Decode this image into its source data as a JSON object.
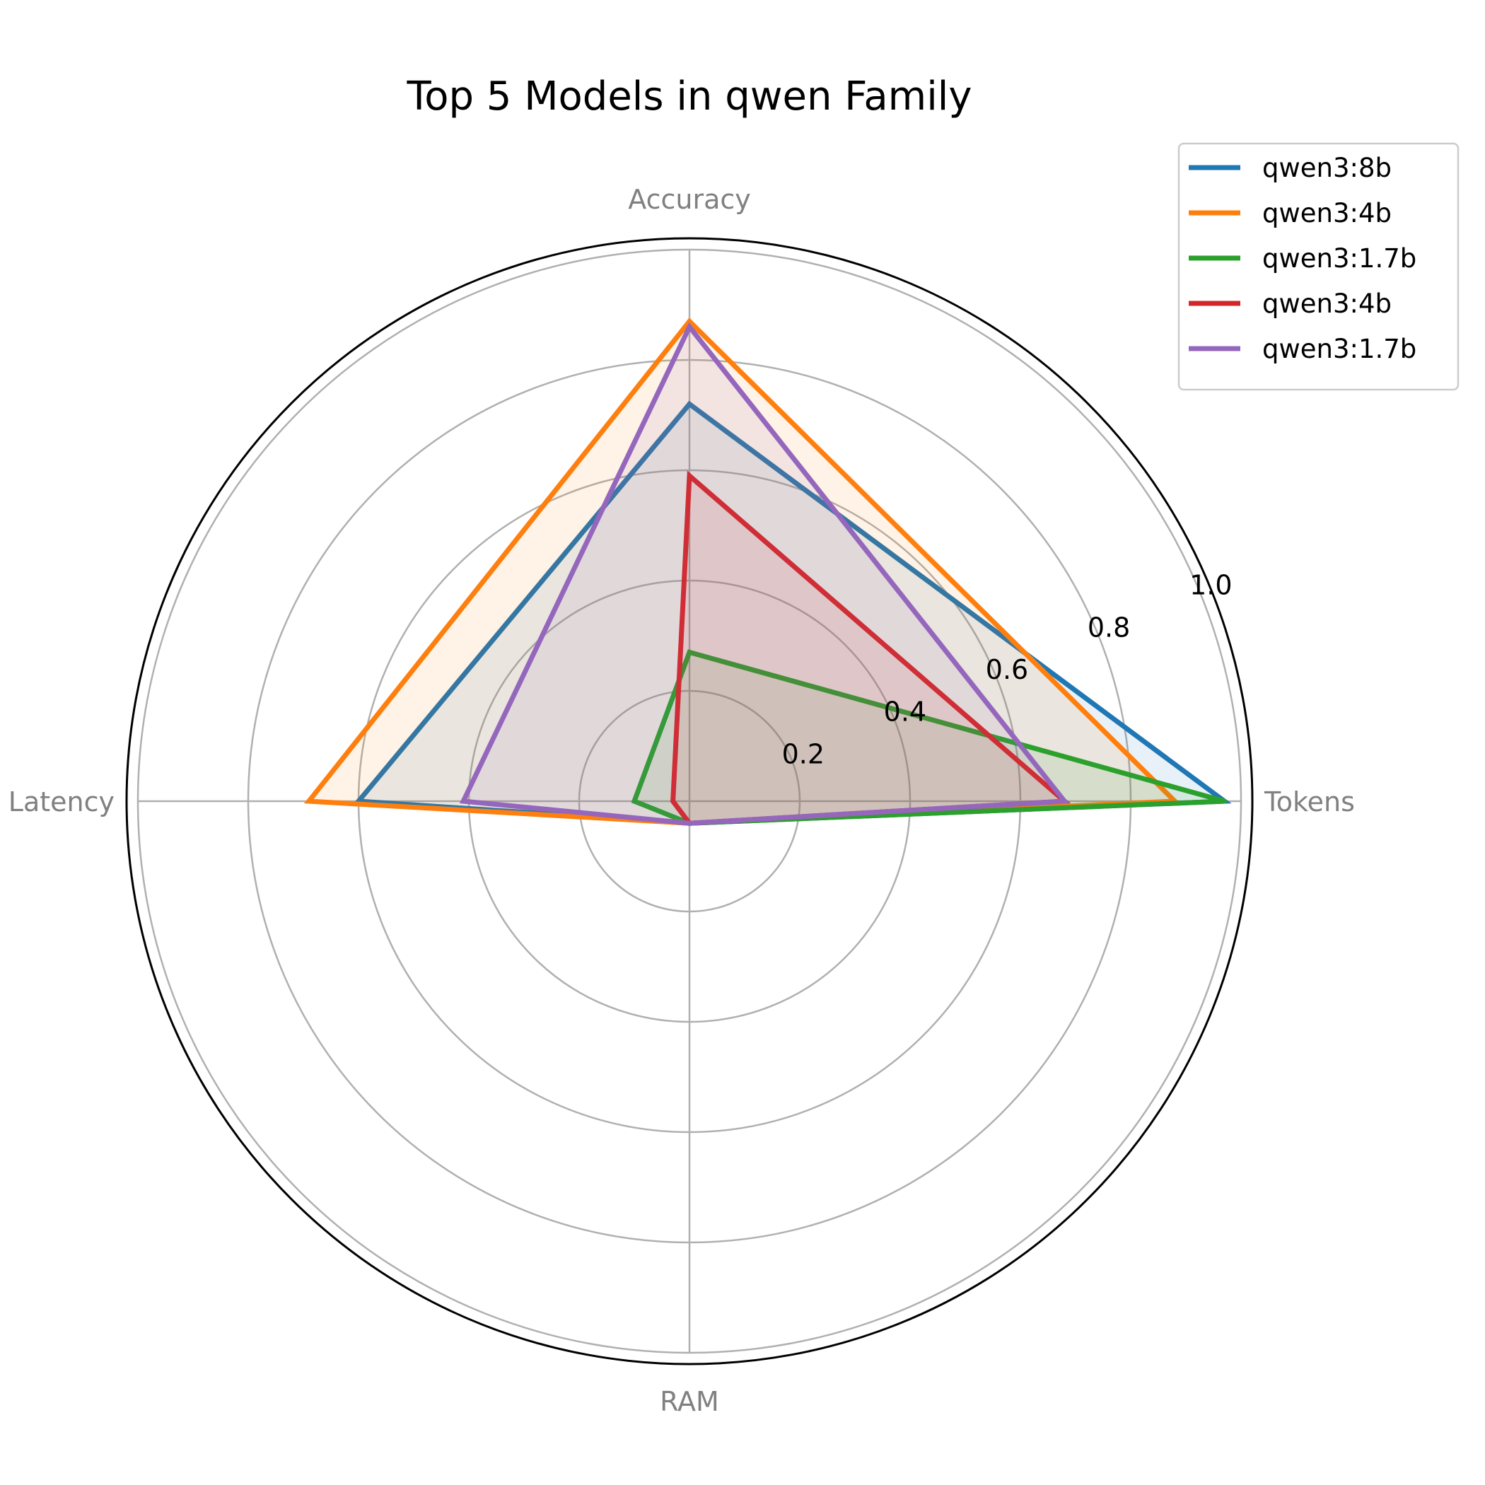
{
  "chart_data": {
    "type": "radar",
    "title": "Top 5 Models in qwen Family",
    "axes": [
      "Tokens",
      "Accuracy",
      "Latency",
      "RAM"
    ],
    "rlim": [
      0,
      1.0
    ],
    "rticks": [
      "0.2",
      "0.4",
      "0.6",
      "0.8",
      "1.0"
    ],
    "grid": true,
    "legend_position": "top-right",
    "series": [
      {
        "name": "qwen3:8b",
        "color": "#1f77b4",
        "values": [
          0.97,
          0.72,
          0.6,
          0.04
        ]
      },
      {
        "name": "qwen3:4b",
        "color": "#ff7f0e",
        "values": [
          0.88,
          0.87,
          0.69,
          0.04
        ]
      },
      {
        "name": "qwen3:1.7b",
        "color": "#2ca02c",
        "values": [
          0.97,
          0.27,
          0.1,
          0.04
        ]
      },
      {
        "name": "qwen3:4b",
        "color": "#d62728",
        "values": [
          0.68,
          0.59,
          0.03,
          0.04
        ]
      },
      {
        "name": "qwen3:1.7b",
        "color": "#9467bd",
        "values": [
          0.68,
          0.86,
          0.41,
          0.04
        ]
      }
    ]
  }
}
